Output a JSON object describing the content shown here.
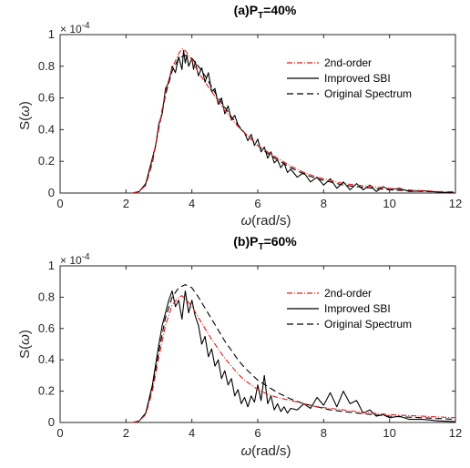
{
  "chart_data": [
    {
      "type": "line",
      "title_prefix": "(a)P",
      "title_sub": "T",
      "title_suffix": "=40%",
      "xlabel_symbol": "ω",
      "xlabel_unit": "(rad/s)",
      "ylabel_prefix": "S(",
      "ylabel_symbol": "ω",
      "ylabel_suffix": ")",
      "y_exponent_base": "× 10",
      "y_exponent_power": "-4",
      "xlim": [
        0,
        12
      ],
      "ylim": [
        0,
        1
      ],
      "xticks": [
        "0",
        "2",
        "4",
        "6",
        "8",
        "10",
        "12"
      ],
      "yticks": [
        "0",
        "0.2",
        "0.4",
        "0.6",
        "0.8",
        "1"
      ],
      "legend_position": "top-right",
      "series": [
        {
          "name": "2nd-order",
          "color": "#e41a1c",
          "dash": "dash-dot",
          "x": [
            2.2,
            2.4,
            2.6,
            2.8,
            3.0,
            3.2,
            3.4,
            3.6,
            3.7,
            3.8,
            3.9,
            4.0,
            4.1,
            4.2,
            4.4,
            4.6,
            4.8,
            5.0,
            5.2,
            5.4,
            5.6,
            5.8,
            6.0,
            6.3,
            6.6,
            7.0,
            7.4,
            7.8,
            8.2,
            8.6,
            9.0,
            9.5,
            10.0,
            10.5,
            11.0,
            11.5,
            12.0
          ],
          "y": [
            0.0,
            0.01,
            0.05,
            0.2,
            0.42,
            0.64,
            0.79,
            0.88,
            0.91,
            0.9,
            0.87,
            0.84,
            0.8,
            0.76,
            0.7,
            0.64,
            0.58,
            0.52,
            0.47,
            0.42,
            0.38,
            0.34,
            0.3,
            0.26,
            0.22,
            0.17,
            0.13,
            0.1,
            0.08,
            0.06,
            0.05,
            0.04,
            0.03,
            0.02,
            0.015,
            0.01,
            0.008
          ]
        },
        {
          "name": "Improved SBI",
          "color": "#000000",
          "dash": "solid",
          "x": [
            2.2,
            2.4,
            2.6,
            2.8,
            2.9,
            3.0,
            3.1,
            3.2,
            3.3,
            3.4,
            3.5,
            3.6,
            3.7,
            3.75,
            3.8,
            3.85,
            3.9,
            4.0,
            4.05,
            4.1,
            4.2,
            4.3,
            4.4,
            4.5,
            4.6,
            4.7,
            4.8,
            4.9,
            5.0,
            5.1,
            5.2,
            5.3,
            5.4,
            5.5,
            5.6,
            5.7,
            5.8,
            5.9,
            6.0,
            6.1,
            6.2,
            6.3,
            6.4,
            6.5,
            6.6,
            6.7,
            6.8,
            6.9,
            7.0,
            7.2,
            7.4,
            7.6,
            7.8,
            8.0,
            8.2,
            8.4,
            8.6,
            8.8,
            9.0,
            9.2,
            9.4,
            9.6,
            9.8,
            10.0,
            10.3,
            10.6,
            11.0,
            11.5,
            12.0
          ],
          "y": [
            0.0,
            0.01,
            0.06,
            0.22,
            0.3,
            0.44,
            0.5,
            0.66,
            0.7,
            0.8,
            0.76,
            0.86,
            0.78,
            0.9,
            0.82,
            0.87,
            0.8,
            0.85,
            0.78,
            0.83,
            0.74,
            0.79,
            0.7,
            0.76,
            0.64,
            0.66,
            0.56,
            0.6,
            0.5,
            0.55,
            0.46,
            0.49,
            0.43,
            0.4,
            0.38,
            0.33,
            0.37,
            0.3,
            0.34,
            0.26,
            0.29,
            0.22,
            0.26,
            0.19,
            0.21,
            0.16,
            0.19,
            0.13,
            0.15,
            0.1,
            0.13,
            0.07,
            0.1,
            0.05,
            0.09,
            0.03,
            0.07,
            0.02,
            0.06,
            0.02,
            0.05,
            0.01,
            0.04,
            0.02,
            0.03,
            0.01,
            0.015,
            0.005,
            0.0
          ]
        },
        {
          "name": "Original Spectrum",
          "color": "#000000",
          "dash": "dashed",
          "x": [
            2.2,
            2.4,
            2.6,
            2.8,
            3.0,
            3.2,
            3.4,
            3.6,
            3.8,
            4.0,
            4.2,
            4.4,
            4.6,
            4.8,
            5.0,
            5.2,
            5.4,
            5.6,
            5.8,
            6.0,
            6.3,
            6.6,
            7.0,
            7.4,
            7.8,
            8.2,
            8.6,
            9.0,
            9.5,
            10.0,
            10.5,
            11.0,
            11.5,
            12.0
          ],
          "y": [
            0.0,
            0.01,
            0.05,
            0.19,
            0.41,
            0.62,
            0.77,
            0.85,
            0.87,
            0.85,
            0.8,
            0.74,
            0.67,
            0.6,
            0.54,
            0.48,
            0.43,
            0.38,
            0.34,
            0.3,
            0.25,
            0.21,
            0.16,
            0.12,
            0.09,
            0.07,
            0.05,
            0.04,
            0.03,
            0.02,
            0.015,
            0.01,
            0.007,
            0.005
          ]
        }
      ]
    },
    {
      "type": "line",
      "title_prefix": "(b)P",
      "title_sub": "T",
      "title_suffix": "=60%",
      "xlabel_symbol": "ω",
      "xlabel_unit": "(rad/s)",
      "ylabel_prefix": "S(",
      "ylabel_symbol": "ω",
      "ylabel_suffix": ")",
      "y_exponent_base": "× 10",
      "y_exponent_power": "-4",
      "xlim": [
        0,
        12
      ],
      "ylim": [
        0,
        1
      ],
      "xticks": [
        "0",
        "2",
        "4",
        "6",
        "8",
        "10",
        "12"
      ],
      "yticks": [
        "0",
        "0.2",
        "0.4",
        "0.6",
        "0.8",
        "1"
      ],
      "legend_position": "top-right",
      "series": [
        {
          "name": "2nd-order",
          "color": "#e41a1c",
          "dash": "dash-dot",
          "x": [
            2.2,
            2.4,
            2.6,
            2.8,
            3.0,
            3.2,
            3.4,
            3.6,
            3.7,
            3.8,
            4.0,
            4.2,
            4.4,
            4.6,
            4.8,
            5.0,
            5.2,
            5.4,
            5.6,
            5.8,
            6.0,
            6.3,
            6.6,
            7.0,
            7.4,
            7.8,
            8.2,
            8.6,
            9.0,
            9.5,
            10.0,
            10.5,
            11.0,
            11.5,
            12.0
          ],
          "y": [
            0.0,
            0.01,
            0.05,
            0.2,
            0.42,
            0.62,
            0.75,
            0.8,
            0.81,
            0.79,
            0.74,
            0.67,
            0.6,
            0.53,
            0.47,
            0.41,
            0.36,
            0.31,
            0.27,
            0.24,
            0.21,
            0.18,
            0.16,
            0.14,
            0.12,
            0.1,
            0.09,
            0.08,
            0.07,
            0.06,
            0.05,
            0.045,
            0.04,
            0.035,
            0.03
          ]
        },
        {
          "name": "Improved SBI",
          "color": "#000000",
          "dash": "solid",
          "x": [
            2.2,
            2.4,
            2.6,
            2.8,
            3.0,
            3.1,
            3.2,
            3.3,
            3.4,
            3.5,
            3.6,
            3.7,
            3.8,
            3.9,
            4.0,
            4.1,
            4.2,
            4.3,
            4.4,
            4.5,
            4.6,
            4.7,
            4.8,
            4.9,
            5.0,
            5.1,
            5.2,
            5.3,
            5.4,
            5.5,
            5.6,
            5.7,
            5.8,
            5.9,
            6.0,
            6.1,
            6.2,
            6.3,
            6.4,
            6.5,
            6.6,
            6.7,
            6.8,
            6.9,
            7.0,
            7.2,
            7.4,
            7.6,
            7.8,
            8.0,
            8.2,
            8.4,
            8.6,
            8.8,
            9.0,
            9.2,
            9.4,
            9.6,
            9.8,
            10.0,
            10.3,
            10.6,
            11.0,
            11.5,
            12.0
          ],
          "y": [
            0.0,
            0.01,
            0.06,
            0.24,
            0.5,
            0.62,
            0.7,
            0.78,
            0.84,
            0.74,
            0.78,
            0.66,
            0.84,
            0.7,
            0.78,
            0.68,
            0.62,
            0.5,
            0.55,
            0.42,
            0.47,
            0.36,
            0.4,
            0.28,
            0.33,
            0.24,
            0.28,
            0.17,
            0.21,
            0.12,
            0.16,
            0.1,
            0.17,
            0.13,
            0.24,
            0.14,
            0.3,
            0.12,
            0.17,
            0.08,
            0.12,
            0.07,
            0.1,
            0.06,
            0.09,
            0.08,
            0.12,
            0.09,
            0.16,
            0.11,
            0.19,
            0.1,
            0.2,
            0.12,
            0.14,
            0.06,
            0.08,
            0.04,
            0.05,
            0.03,
            0.04,
            0.02,
            0.02,
            0.01,
            0.005
          ]
        },
        {
          "name": "Original Spectrum",
          "color": "#000000",
          "dash": "dashed",
          "x": [
            2.2,
            2.4,
            2.6,
            2.8,
            3.0,
            3.2,
            3.4,
            3.6,
            3.8,
            4.0,
            4.2,
            4.4,
            4.6,
            4.8,
            5.0,
            5.2,
            5.4,
            5.6,
            5.8,
            6.0,
            6.3,
            6.6,
            7.0,
            7.4,
            7.8,
            8.2,
            8.6,
            9.0,
            9.5,
            10.0,
            10.5,
            11.0,
            11.5,
            12.0
          ],
          "y": [
            0.0,
            0.01,
            0.06,
            0.22,
            0.46,
            0.67,
            0.8,
            0.86,
            0.88,
            0.86,
            0.8,
            0.73,
            0.66,
            0.59,
            0.52,
            0.46,
            0.4,
            0.35,
            0.31,
            0.27,
            0.23,
            0.19,
            0.15,
            0.12,
            0.1,
            0.08,
            0.07,
            0.06,
            0.05,
            0.04,
            0.035,
            0.03,
            0.025,
            0.02
          ]
        }
      ]
    }
  ]
}
